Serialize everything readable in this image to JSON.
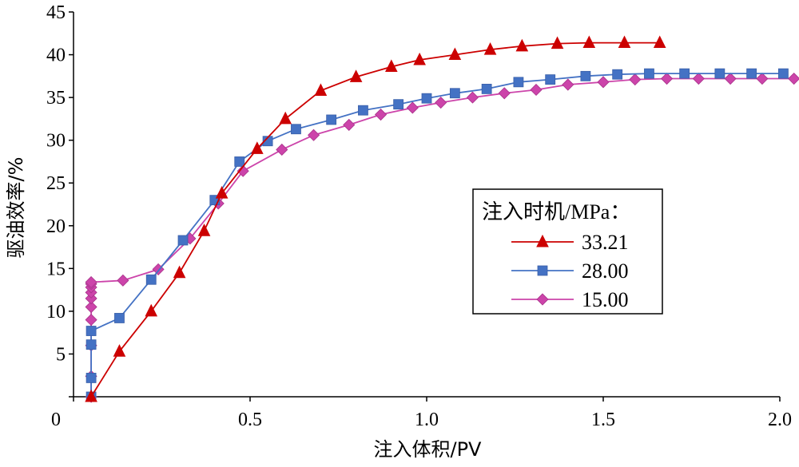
{
  "chart_data": {
    "type": "line",
    "xlabel": "注入体积/PV",
    "ylabel": "驱油效率/%",
    "xlim": [
      0,
      2.0
    ],
    "ylim": [
      0,
      45
    ],
    "xticks": [
      "0",
      "0.5",
      "1.0",
      "1.5",
      "2.0"
    ],
    "yticks": [
      "5",
      "10",
      "15",
      "20",
      "25",
      "30",
      "35",
      "40",
      "45"
    ],
    "grid": false,
    "legend": {
      "title": "注入时机/MPa：",
      "placement": "center-right"
    },
    "series": [
      {
        "name": "33.21",
        "color": "#cc0000",
        "marker": "triangle",
        "x": [
          0.05,
          0.13,
          0.22,
          0.3,
          0.37,
          0.42,
          0.52,
          0.6,
          0.7,
          0.8,
          0.9,
          0.98,
          1.08,
          1.18,
          1.27,
          1.37,
          1.46,
          1.56,
          1.66
        ],
        "y": [
          0,
          5.3,
          10.0,
          14.5,
          19.4,
          23.8,
          29.0,
          32.5,
          35.8,
          37.4,
          38.6,
          39.4,
          40.0,
          40.6,
          41.0,
          41.3,
          41.4,
          41.4,
          41.4
        ]
      },
      {
        "name": "28.00",
        "color": "#4472c4",
        "marker": "square",
        "x": [
          0.05,
          0.05,
          0.05,
          0.05,
          0.13,
          0.22,
          0.31,
          0.4,
          0.47,
          0.55,
          0.63,
          0.73,
          0.82,
          0.92,
          1.0,
          1.08,
          1.17,
          1.26,
          1.35,
          1.45,
          1.54,
          1.63,
          1.73,
          1.83,
          1.92,
          2.01
        ],
        "y": [
          0,
          2.2,
          6.1,
          7.7,
          9.2,
          13.7,
          18.3,
          23.0,
          27.5,
          29.9,
          31.3,
          32.4,
          33.5,
          34.2,
          34.9,
          35.5,
          36.0,
          36.8,
          37.1,
          37.5,
          37.7,
          37.8,
          37.8,
          37.8,
          37.8,
          37.8
        ]
      },
      {
        "name": "15.00",
        "color": "#cc44aa",
        "marker": "diamond",
        "x": [
          0.05,
          0.05,
          0.05,
          0.05,
          0.05,
          0.05,
          0.05,
          0.05,
          0.05,
          0.05,
          0.14,
          0.24,
          0.33,
          0.41,
          0.48,
          0.59,
          0.68,
          0.78,
          0.87,
          0.96,
          1.04,
          1.13,
          1.22,
          1.31,
          1.4,
          1.5,
          1.59,
          1.68,
          1.77,
          1.86,
          1.95,
          2.04
        ],
        "y": [
          0,
          2.4,
          6.0,
          9.0,
          10.5,
          11.5,
          12.2,
          12.8,
          13.2,
          13.4,
          13.6,
          14.9,
          18.5,
          22.6,
          26.4,
          28.9,
          30.6,
          31.8,
          33.0,
          33.8,
          34.4,
          35.0,
          35.5,
          35.9,
          36.5,
          36.8,
          37.1,
          37.2,
          37.2,
          37.2,
          37.2,
          37.2
        ]
      }
    ]
  }
}
